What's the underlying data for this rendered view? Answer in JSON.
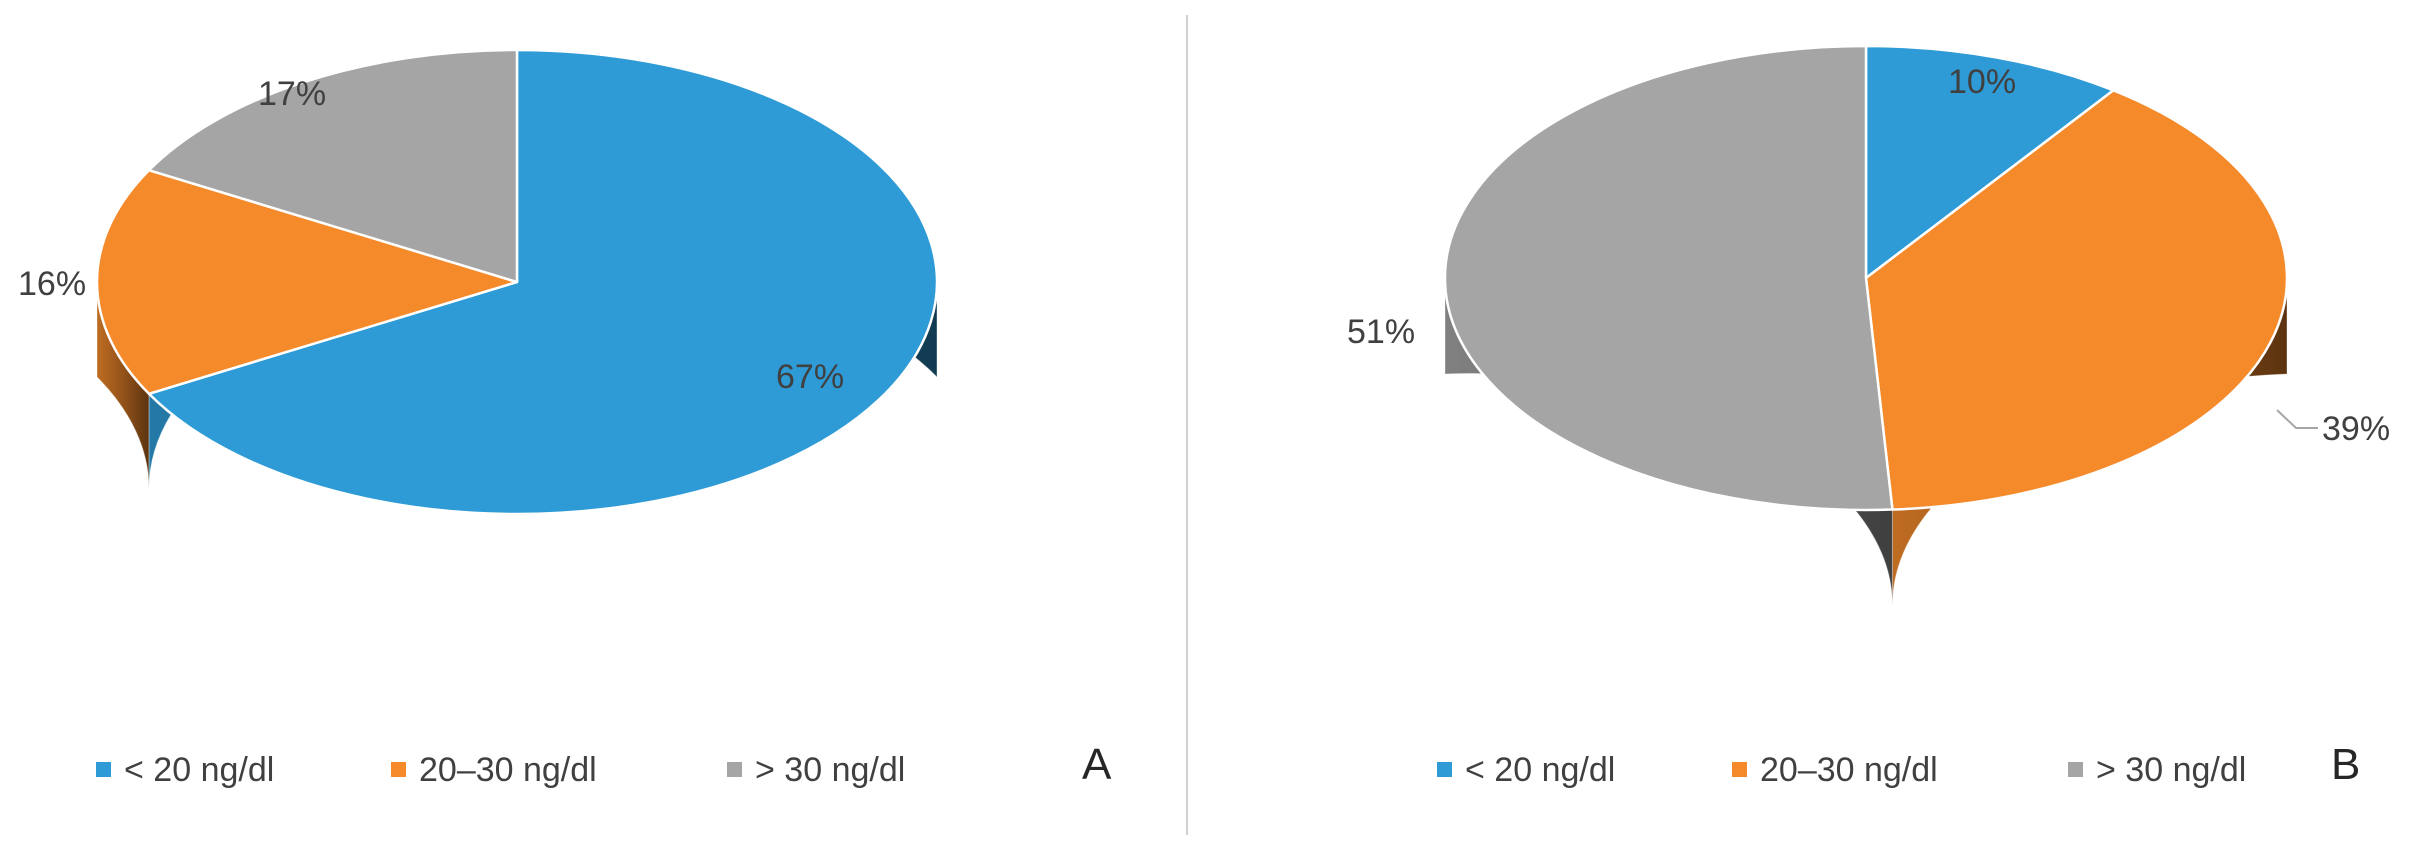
{
  "chart_data": [
    {
      "type": "pie",
      "panel_label": "A",
      "categories": [
        "< 20 ng/dl",
        "20–30 ng/dl",
        "> 30 ng/dl"
      ],
      "values": [
        67,
        16,
        17
      ],
      "value_labels": [
        "67%",
        "16%",
        "17%"
      ],
      "colors": [
        "#2e9bd6",
        "#f58a2b",
        "#a5a5a5"
      ],
      "legend_position": "bottom"
    },
    {
      "type": "pie",
      "panel_label": "B",
      "categories": [
        "< 20 ng/dl",
        "20–30 ng/dl",
        "> 30 ng/dl"
      ],
      "values": [
        10,
        39,
        51
      ],
      "value_labels": [
        "10%",
        "39%",
        "51%"
      ],
      "colors": [
        "#2e9bd6",
        "#f58a2b",
        "#a5a5a5"
      ],
      "legend_position": "bottom"
    }
  ]
}
